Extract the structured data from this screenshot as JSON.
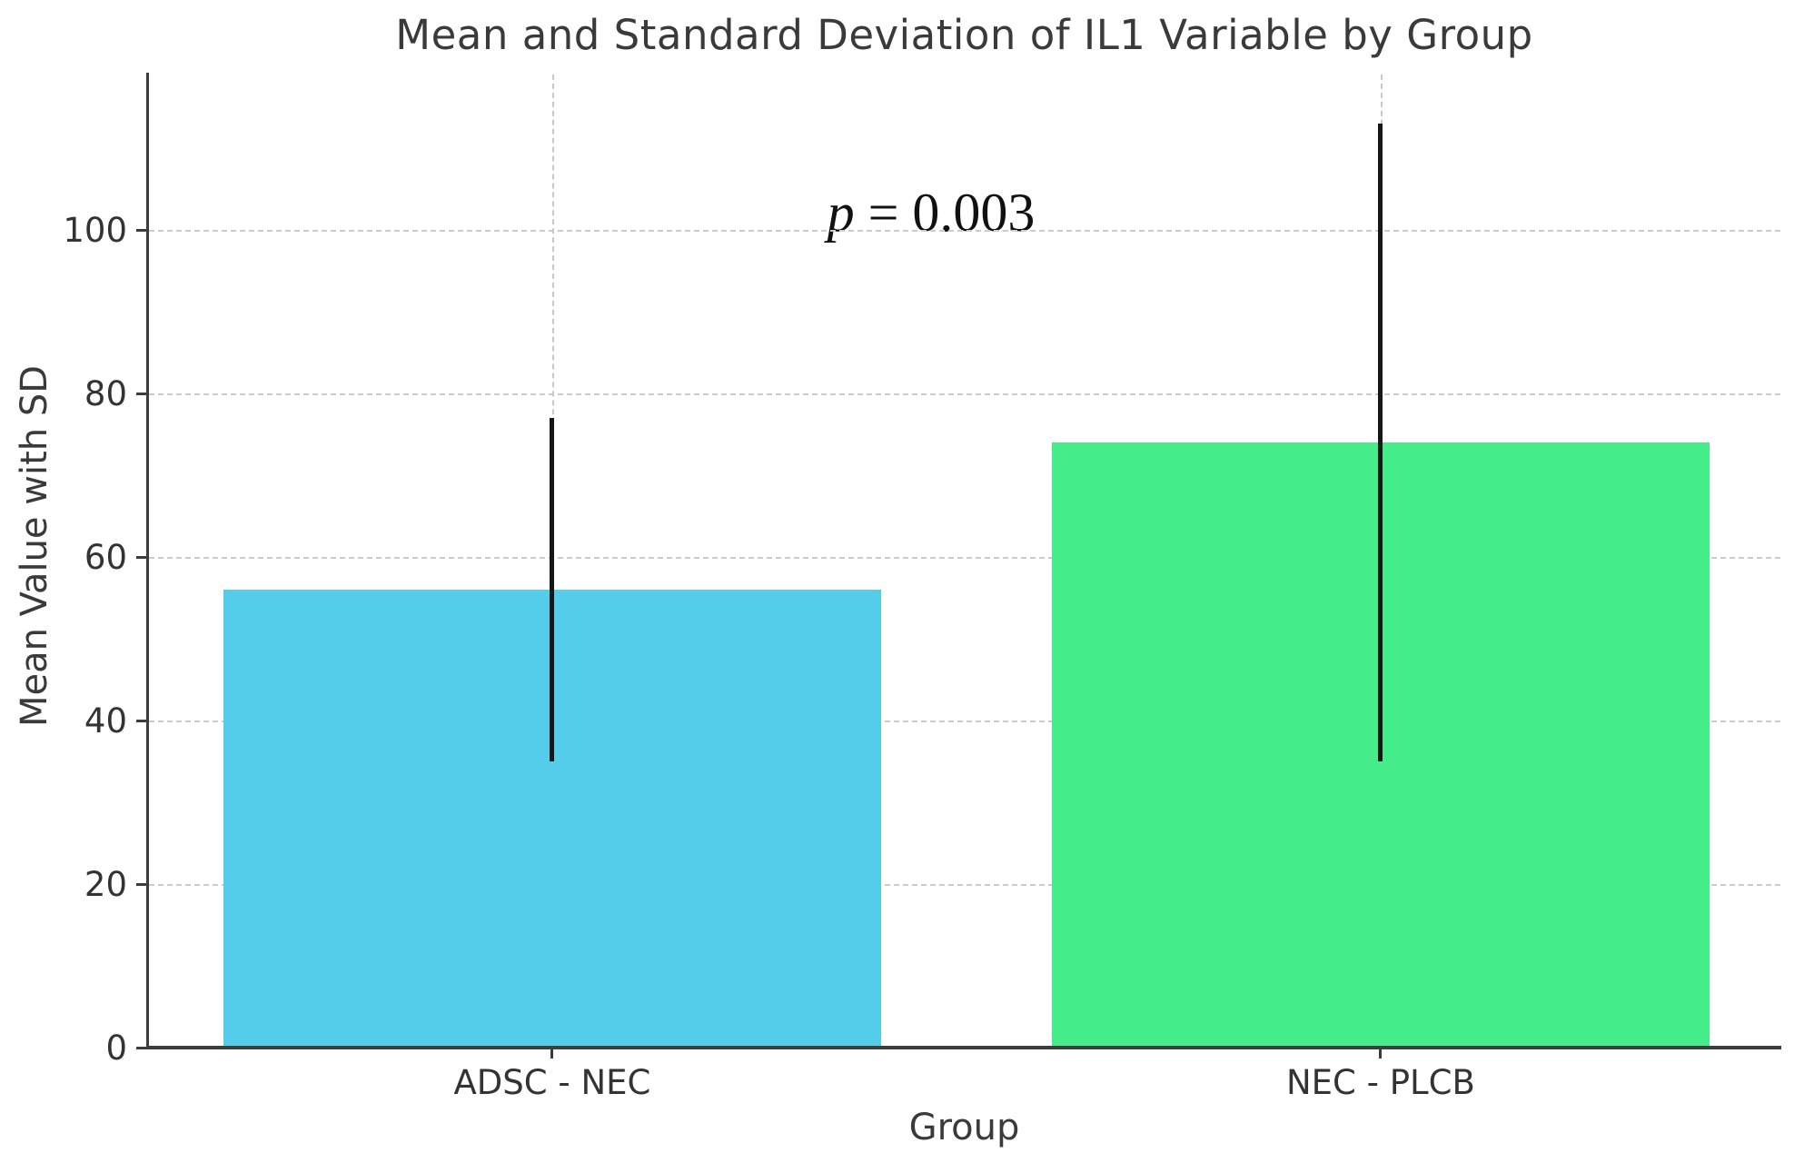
{
  "chart_data": {
    "type": "bar",
    "title": "Mean and Standard Deviation of IL1 Variable by Group",
    "xlabel": "Group",
    "ylabel": "Mean Value with SD",
    "categories": [
      "ADSC - NEC",
      "NEC - PLCB"
    ],
    "values": [
      56,
      74
    ],
    "error_sd": [
      21,
      39
    ],
    "error_bar_ranges": [
      [
        35,
        77
      ],
      [
        35,
        113
      ]
    ],
    "bar_colors": [
      "#54CDEB",
      "#45ED8A"
    ],
    "error_bar_color": "#161616",
    "yticks": [
      0,
      20,
      40,
      60,
      80,
      100
    ],
    "ylim": [
      0,
      119
    ],
    "grid": "dashed light-gray gridlines at x and y tick positions",
    "legend": null,
    "annotation": {
      "text": "p = 0.003",
      "symbol": "p",
      "rest": " = 0.003"
    }
  }
}
